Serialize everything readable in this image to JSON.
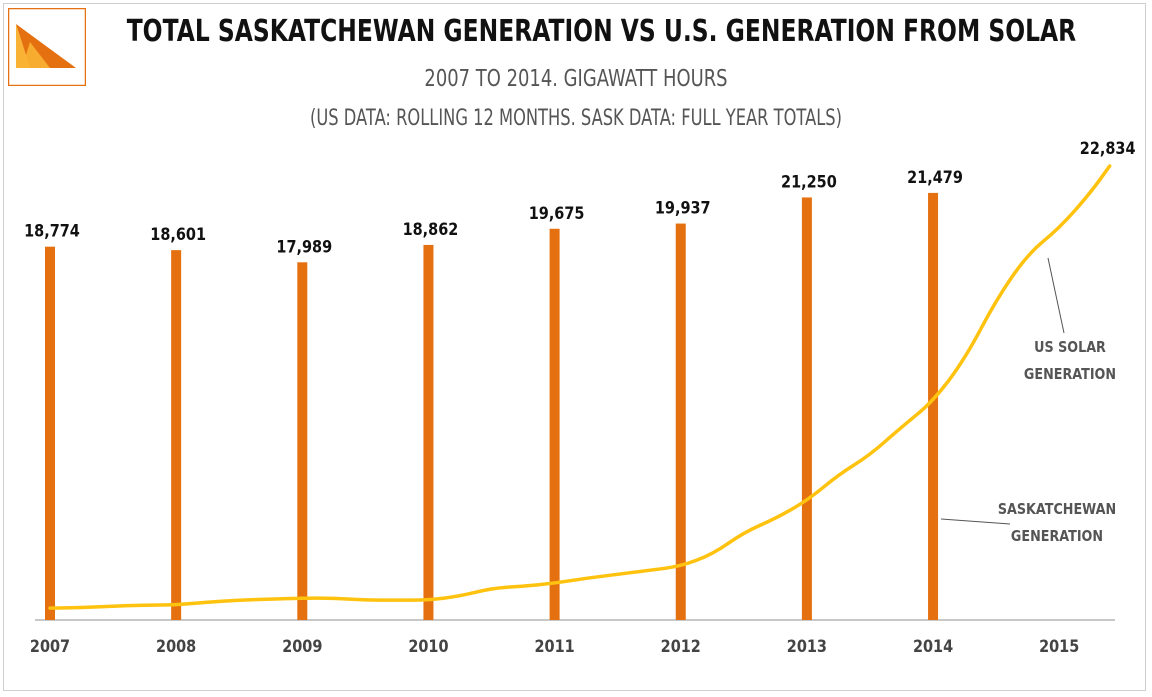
{
  "header": {
    "title": "TOTAL SASKATCHEWAN GENERATION VS U.S. GENERATION FROM SOLAR",
    "subtitle": "2007 TO 2014. GIGAWATT HOURS",
    "note": "(US DATA: ROLLING 12 MONTHS. SASK DATA: FULL YEAR TOTALS)"
  },
  "colors": {
    "bar": "#E5700F",
    "line": "#FFC20E",
    "axis": "#b5b5b5",
    "logo_orange": "#E5700F",
    "logo_yellow": "#F9B233"
  },
  "logo": {
    "icon": "triangle-logo-icon"
  },
  "chart_data": {
    "type": "bar",
    "title": "TOTAL SASKATCHEWAN GENERATION VS U.S. GENERATION FROM SOLAR",
    "subtitle": "2007 TO 2014. GIGAWATT HOURS",
    "x_ticks": [
      "2007",
      "2008",
      "2009",
      "2010",
      "2011",
      "2012",
      "2013",
      "2014",
      "2015"
    ],
    "x_range": [
      2007,
      2015.6
    ],
    "ylim": [
      0,
      26000
    ],
    "grid": false,
    "legend": "none",
    "series": [
      {
        "name": "SASKATCHEWAN GENERATION",
        "type": "bar",
        "x": [
          2007,
          2008,
          2009,
          2010,
          2011,
          2012,
          2013,
          2014
        ],
        "values": [
          18774,
          18601,
          17989,
          18862,
          19675,
          19937,
          21250,
          21479
        ],
        "labels": [
          "18,774",
          "18,601",
          "17,989",
          "18,862",
          "19,675",
          "19,937",
          "21,250",
          "21,479"
        ]
      },
      {
        "name": "US SOLAR GENERATION",
        "type": "line",
        "x": [
          2007.0,
          2007.25,
          2007.5,
          2007.75,
          2008.0,
          2008.25,
          2008.5,
          2008.75,
          2009.0,
          2009.25,
          2009.5,
          2009.75,
          2010.0,
          2010.25,
          2010.5,
          2010.75,
          2011.0,
          2011.25,
          2011.5,
          2011.75,
          2012.0,
          2012.25,
          2012.5,
          2012.75,
          2013.0,
          2013.25,
          2013.5,
          2013.75,
          2014.0,
          2014.25,
          2014.5,
          2014.75,
          2015.0,
          2015.25,
          2015.4
        ],
        "values": [
          600,
          620,
          700,
          750,
          760,
          900,
          1000,
          1050,
          1100,
          1100,
          1000,
          1000,
          1000,
          1200,
          1600,
          1700,
          1850,
          2100,
          2300,
          2500,
          2700,
          3300,
          4400,
          5100,
          6000,
          7300,
          8300,
          9700,
          11000,
          13100,
          16100,
          18400,
          19700,
          21500,
          22834
        ],
        "end_label": "22,834"
      }
    ],
    "annotations": [
      {
        "lines": [
          "US SOLAR",
          "GENERATION"
        ],
        "series": "US SOLAR GENERATION"
      },
      {
        "lines": [
          "SASKATCHEWAN",
          "GENERATION"
        ],
        "series": "SASKATCHEWAN GENERATION"
      }
    ]
  }
}
